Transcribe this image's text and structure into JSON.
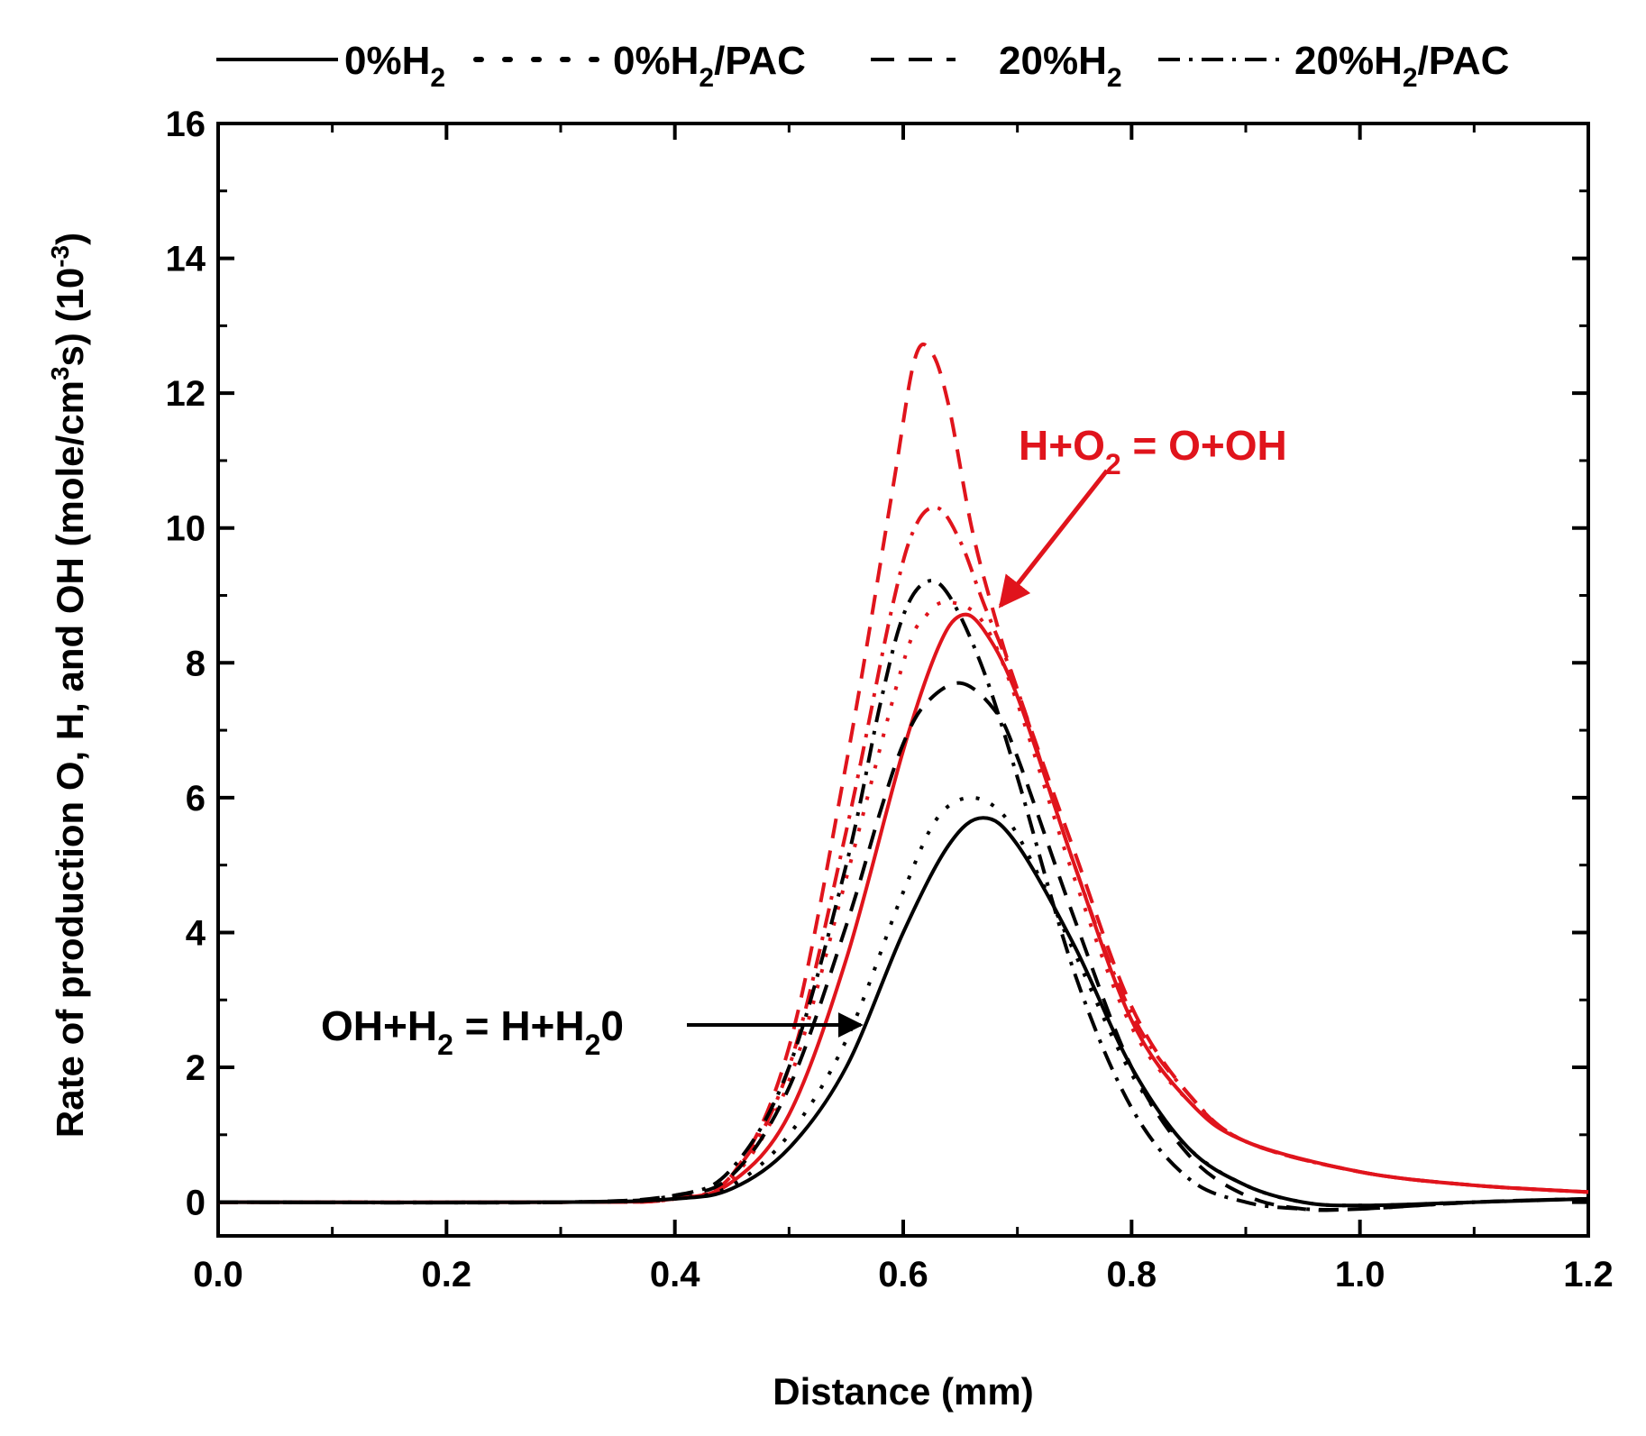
{
  "chart_data": {
    "type": "line",
    "title": "",
    "xlabel": "Distance (mm)",
    "ylabel": {
      "base": "Rate of production O, H, and OH (mole/cm",
      "sup1": "3",
      "mid": "s) (10",
      "sup2": "-3",
      "end": ")"
    },
    "xlim": [
      0.0,
      1.2
    ],
    "ylim": [
      -0.5,
      16
    ],
    "x_ticks": [
      0.0,
      0.2,
      0.4,
      0.6,
      0.8,
      1.0,
      1.2
    ],
    "x_tick_labels": [
      "0.0",
      "0.2",
      "0.4",
      "0.6",
      "0.8",
      "1.0",
      "1.2"
    ],
    "y_ticks": [
      0,
      2,
      4,
      6,
      8,
      10,
      12,
      14,
      16
    ],
    "y_tick_labels": [
      "0",
      "2",
      "4",
      "6",
      "8",
      "10",
      "12",
      "14",
      "16"
    ],
    "grid": false,
    "legend_position": "top",
    "legend": [
      {
        "base": "0%H",
        "sub": "2",
        "rest": "",
        "dash": "solid"
      },
      {
        "base": "0%H",
        "sub": "2",
        "rest": "/PAC",
        "dash": "dot"
      },
      {
        "base": "20%H",
        "sub": "2",
        "rest": "",
        "dash": "dash"
      },
      {
        "base": "20%H",
        "sub": "2",
        "rest": "/PAC",
        "dash": "dashdot"
      }
    ],
    "reactions": [
      {
        "name": "H+O2 = O+OH",
        "color": "#e0141c",
        "label": {
          "a": "H+O",
          "a_sub": "2",
          "b": " = O+OH"
        }
      },
      {
        "name": "OH+H2 = H+H2O",
        "color": "#000000",
        "label": {
          "a": "OH+H",
          "a_sub": "2",
          "b": " = H+H",
          "b_sub": "2",
          "c": "0"
        }
      }
    ],
    "series": [
      {
        "name": "0%H2 H+O2=O+OH",
        "color": "#e0141c",
        "dash": "solid",
        "x": [
          0.0,
          0.3,
          0.4,
          0.45,
          0.5,
          0.55,
          0.6,
          0.63,
          0.65,
          0.67,
          0.7,
          0.75,
          0.8,
          0.85,
          0.9,
          1.0,
          1.1,
          1.2
        ],
        "y": [
          0.0,
          0.0,
          0.05,
          0.3,
          1.3,
          3.6,
          6.7,
          8.2,
          8.7,
          8.5,
          7.5,
          5.0,
          2.7,
          1.5,
          0.9,
          0.45,
          0.25,
          0.15
        ]
      },
      {
        "name": "0%H2/PAC H+O2=O+OH",
        "color": "#e0141c",
        "dash": "dot",
        "x": [
          0.0,
          0.3,
          0.4,
          0.45,
          0.5,
          0.55,
          0.6,
          0.62,
          0.64,
          0.67,
          0.7,
          0.75,
          0.8,
          0.85,
          0.9,
          1.0,
          1.1,
          1.2
        ],
        "y": [
          0.0,
          0.0,
          0.05,
          0.35,
          1.8,
          4.8,
          8.0,
          8.7,
          8.9,
          8.6,
          7.4,
          4.8,
          2.6,
          1.5,
          0.9,
          0.45,
          0.25,
          0.15
        ]
      },
      {
        "name": "20%H2 H+O2=O+OH",
        "color": "#e0141c",
        "dash": "dash",
        "x": [
          0.0,
          0.3,
          0.4,
          0.45,
          0.5,
          0.55,
          0.59,
          0.61,
          0.625,
          0.64,
          0.66,
          0.68,
          0.7,
          0.75,
          0.8,
          0.85,
          0.9,
          1.0,
          1.1,
          1.2
        ],
        "y": [
          0.0,
          0.0,
          0.05,
          0.4,
          2.3,
          6.5,
          10.5,
          12.5,
          12.6,
          11.8,
          10.0,
          8.7,
          7.6,
          5.2,
          2.9,
          1.6,
          0.9,
          0.45,
          0.25,
          0.15
        ]
      },
      {
        "name": "20%H2/PAC H+O2=O+OH",
        "color": "#e0141c",
        "dash": "dashdot",
        "x": [
          0.0,
          0.3,
          0.4,
          0.45,
          0.5,
          0.55,
          0.59,
          0.61,
          0.63,
          0.65,
          0.67,
          0.7,
          0.75,
          0.8,
          0.85,
          0.9,
          1.0,
          1.1,
          1.2
        ],
        "y": [
          0.0,
          0.0,
          0.05,
          0.4,
          2.0,
          5.5,
          8.8,
          10.0,
          10.3,
          9.8,
          8.9,
          7.6,
          5.0,
          2.8,
          1.6,
          0.9,
          0.45,
          0.25,
          0.15
        ]
      },
      {
        "name": "0%H2 OH+H2=H+H2O",
        "color": "#000000",
        "dash": "solid",
        "x": [
          0.0,
          0.3,
          0.4,
          0.45,
          0.5,
          0.55,
          0.6,
          0.64,
          0.67,
          0.7,
          0.75,
          0.8,
          0.85,
          0.9,
          0.95,
          1.0,
          1.1,
          1.2
        ],
        "y": [
          0.0,
          0.0,
          0.05,
          0.2,
          0.8,
          2.0,
          4.0,
          5.3,
          5.7,
          5.3,
          3.8,
          2.0,
          0.8,
          0.25,
          0.0,
          -0.05,
          0.0,
          0.05
        ]
      },
      {
        "name": "0%H2/PAC OH+H2=H+H2O",
        "color": "#000000",
        "dash": "dot",
        "x": [
          0.0,
          0.3,
          0.4,
          0.45,
          0.5,
          0.55,
          0.6,
          0.63,
          0.66,
          0.69,
          0.72,
          0.75,
          0.8,
          0.85,
          0.9,
          0.95,
          1.0,
          1.1,
          1.2
        ],
        "y": [
          0.0,
          0.0,
          0.05,
          0.25,
          1.0,
          2.4,
          4.6,
          5.7,
          6.0,
          5.7,
          4.8,
          3.7,
          1.9,
          0.8,
          0.25,
          0.0,
          -0.05,
          0.0,
          0.05
        ]
      },
      {
        "name": "20%H2 OH+H2=H+H2O",
        "color": "#000000",
        "dash": "dash",
        "x": [
          0.0,
          0.3,
          0.4,
          0.45,
          0.5,
          0.55,
          0.58,
          0.6,
          0.62,
          0.65,
          0.68,
          0.7,
          0.75,
          0.8,
          0.85,
          0.9,
          0.95,
          1.0,
          1.1,
          1.2
        ],
        "y": [
          0.0,
          0.0,
          0.1,
          0.4,
          1.7,
          4.1,
          5.8,
          6.8,
          7.4,
          7.7,
          7.3,
          6.6,
          4.2,
          2.0,
          0.7,
          0.1,
          -0.1,
          -0.1,
          0.0,
          0.05
        ]
      },
      {
        "name": "20%H2/PAC OH+H2=H+H2O",
        "color": "#000000",
        "dash": "dashdot",
        "x": [
          0.0,
          0.3,
          0.4,
          0.45,
          0.5,
          0.55,
          0.58,
          0.6,
          0.62,
          0.64,
          0.67,
          0.7,
          0.75,
          0.8,
          0.85,
          0.9,
          0.95,
          1.0,
          1.1,
          1.2
        ],
        "y": [
          0.0,
          0.0,
          0.1,
          0.5,
          2.0,
          5.0,
          7.4,
          8.7,
          9.2,
          9.0,
          7.9,
          6.3,
          3.4,
          1.4,
          0.35,
          0.0,
          -0.1,
          -0.1,
          0.0,
          0.05
        ]
      }
    ]
  }
}
